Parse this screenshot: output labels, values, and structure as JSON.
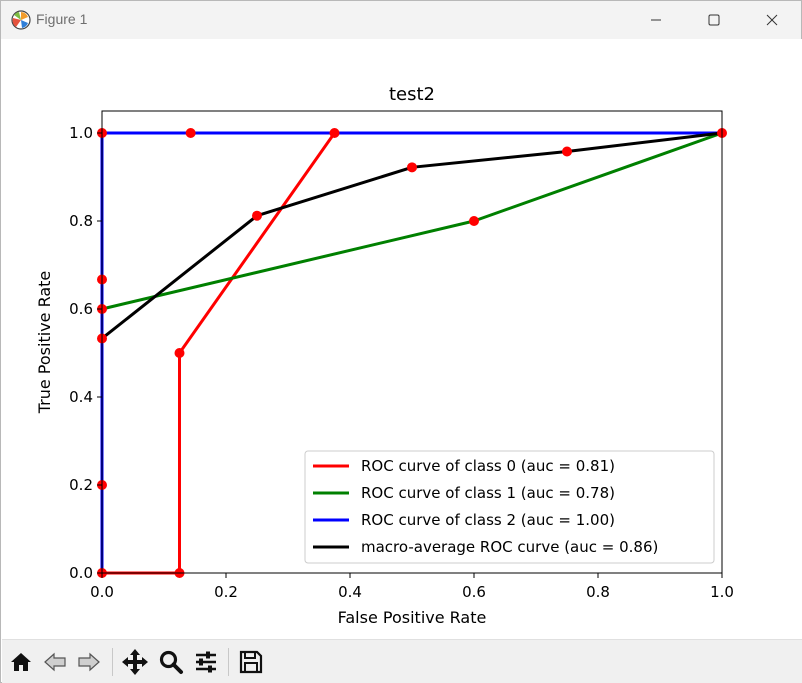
{
  "window": {
    "title": "Figure 1"
  },
  "toolbar": {
    "icons": [
      "home-icon",
      "back-arrow-icon",
      "forward-arrow-icon",
      "pan-icon",
      "zoom-icon",
      "subplots-config-icon",
      "save-icon"
    ]
  },
  "chart_data": {
    "type": "line",
    "title": "test2",
    "xlabel": "False Positive Rate",
    "ylabel": "True Positive Rate",
    "xlim": [
      0.0,
      1.0
    ],
    "ylim": [
      0.0,
      1.05
    ],
    "xticks": [
      "0.0",
      "0.2",
      "0.4",
      "0.6",
      "0.8",
      "1.0"
    ],
    "yticks": [
      "0.0",
      "0.2",
      "0.4",
      "0.6",
      "0.8",
      "1.0"
    ],
    "grid": false,
    "legend_position": "lower-right",
    "marker_color": "#ff0000",
    "series": [
      {
        "name": "ROC curve of class 0 (auc = 0.81)",
        "color": "#ff0000",
        "x": [
          0.0,
          0.125,
          0.125,
          0.375,
          1.0
        ],
        "y": [
          0.0,
          0.0,
          0.5,
          1.0,
          1.0
        ]
      },
      {
        "name": "ROC curve of class 1 (auc = 0.78)",
        "color": "#008000",
        "x": [
          0.0,
          0.0,
          0.6,
          1.0
        ],
        "y": [
          0.0,
          0.6,
          0.8,
          1.0
        ]
      },
      {
        "name": "ROC curve of class 2 (auc = 1.00)",
        "color": "#0000ff",
        "x": [
          0.0,
          0.0,
          0.0,
          0.143,
          1.0
        ],
        "y": [
          0.0,
          0.2,
          1.0,
          1.0,
          1.0
        ]
      },
      {
        "name": "macro-average ROC curve (auc = 0.86)",
        "color": "#000000",
        "x": [
          0.0,
          0.25,
          0.5,
          0.75,
          1.0
        ],
        "y": [
          0.533,
          0.812,
          0.922,
          0.958,
          1.0
        ]
      }
    ],
    "points": {
      "x": [
        0.0,
        0.0,
        0.0,
        0.0,
        0.0,
        0.0,
        0.125,
        0.125,
        0.143,
        0.25,
        0.375,
        0.5,
        0.6,
        0.75,
        1.0
      ],
      "y": [
        0.0,
        0.2,
        0.533,
        0.6,
        0.667,
        1.0,
        0.0,
        0.5,
        1.0,
        0.812,
        1.0,
        0.922,
        0.8,
        0.958,
        1.0
      ]
    }
  }
}
